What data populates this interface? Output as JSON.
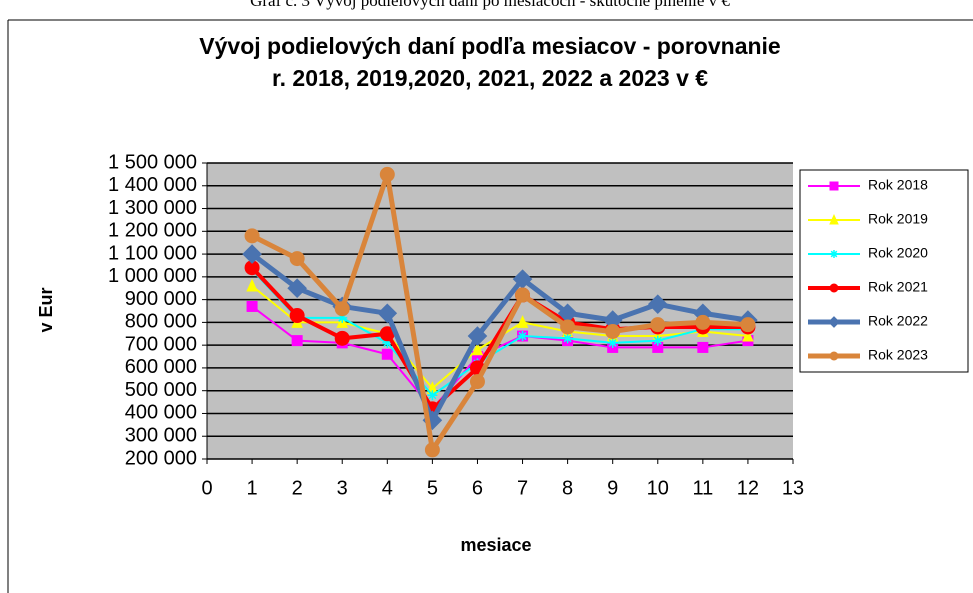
{
  "chart_data": {
    "type": "line",
    "caption": "Graf č. 3 Vývoj podielových daní po mesiacoch - skutočné plnenie v €",
    "title": [
      "Vývoj podielových daní podľa mesiacov - porovnanie",
      "r.  2018, 2019,2020,  2021, 2022 a 2023 v €"
    ],
    "xlabel": "mesiace",
    "ylabel": "v Eur",
    "x": [
      1,
      2,
      3,
      4,
      5,
      6,
      7,
      8,
      9,
      10,
      11,
      12
    ],
    "xlim": [
      0,
      13
    ],
    "xticks": [
      0,
      1,
      2,
      3,
      4,
      5,
      6,
      7,
      8,
      9,
      10,
      11,
      12,
      13
    ],
    "ylim": [
      200000,
      1500000
    ],
    "yticks": [
      {
        "value": 200000,
        "label": "200 000"
      },
      {
        "value": 300000,
        "label": "300 000"
      },
      {
        "value": 400000,
        "label": "400 000"
      },
      {
        "value": 500000,
        "label": "500 000"
      },
      {
        "value": 600000,
        "label": "600 000"
      },
      {
        "value": 700000,
        "label": "700 000"
      },
      {
        "value": 800000,
        "label": "800 000"
      },
      {
        "value": 900000,
        "label": "900 000"
      },
      {
        "value": 1000000,
        "label": "1 000 000"
      },
      {
        "value": 1100000,
        "label": "1 100 000"
      },
      {
        "value": 1200000,
        "label": "1 200 000"
      },
      {
        "value": 1300000,
        "label": "1 300 000"
      },
      {
        "value": 1400000,
        "label": "1 400 000"
      },
      {
        "value": 1500000,
        "label": "1 500 000"
      }
    ],
    "grid": true,
    "legend": "right",
    "series": [
      {
        "name": "Rok 2018",
        "color": "#ff00ff",
        "marker": "square",
        "values": [
          870000,
          720000,
          710000,
          660000,
          420000,
          650000,
          740000,
          720000,
          690000,
          690000,
          690000,
          720000
        ]
      },
      {
        "name": "Rok 2019",
        "color": "#ffff00",
        "marker": "triangle",
        "values": [
          960000,
          800000,
          800000,
          750000,
          510000,
          680000,
          800000,
          760000,
          740000,
          740000,
          760000,
          740000
        ]
      },
      {
        "name": "Rok 2020",
        "color": "#00ffff",
        "marker": "star",
        "values": [
          1030000,
          820000,
          820000,
          710000,
          480000,
          620000,
          740000,
          730000,
          710000,
          720000,
          770000,
          770000
        ]
      },
      {
        "name": "Rok 2021",
        "color": "#ff0000",
        "marker": "circle",
        "values": [
          1040000,
          830000,
          730000,
          750000,
          420000,
          600000,
          920000,
          800000,
          770000,
          780000,
          780000,
          780000
        ]
      },
      {
        "name": "Rok 2022",
        "color": "#4a73b0",
        "marker": "diamond",
        "values": [
          1100000,
          950000,
          870000,
          840000,
          370000,
          740000,
          990000,
          840000,
          810000,
          880000,
          840000,
          810000
        ]
      },
      {
        "name": "Rok 2023",
        "color": "#d9853b",
        "marker": "circle",
        "values": [
          1180000,
          1080000,
          860000,
          1450000,
          240000,
          540000,
          920000,
          780000,
          760000,
          790000,
          800000,
          790000
        ]
      }
    ]
  }
}
